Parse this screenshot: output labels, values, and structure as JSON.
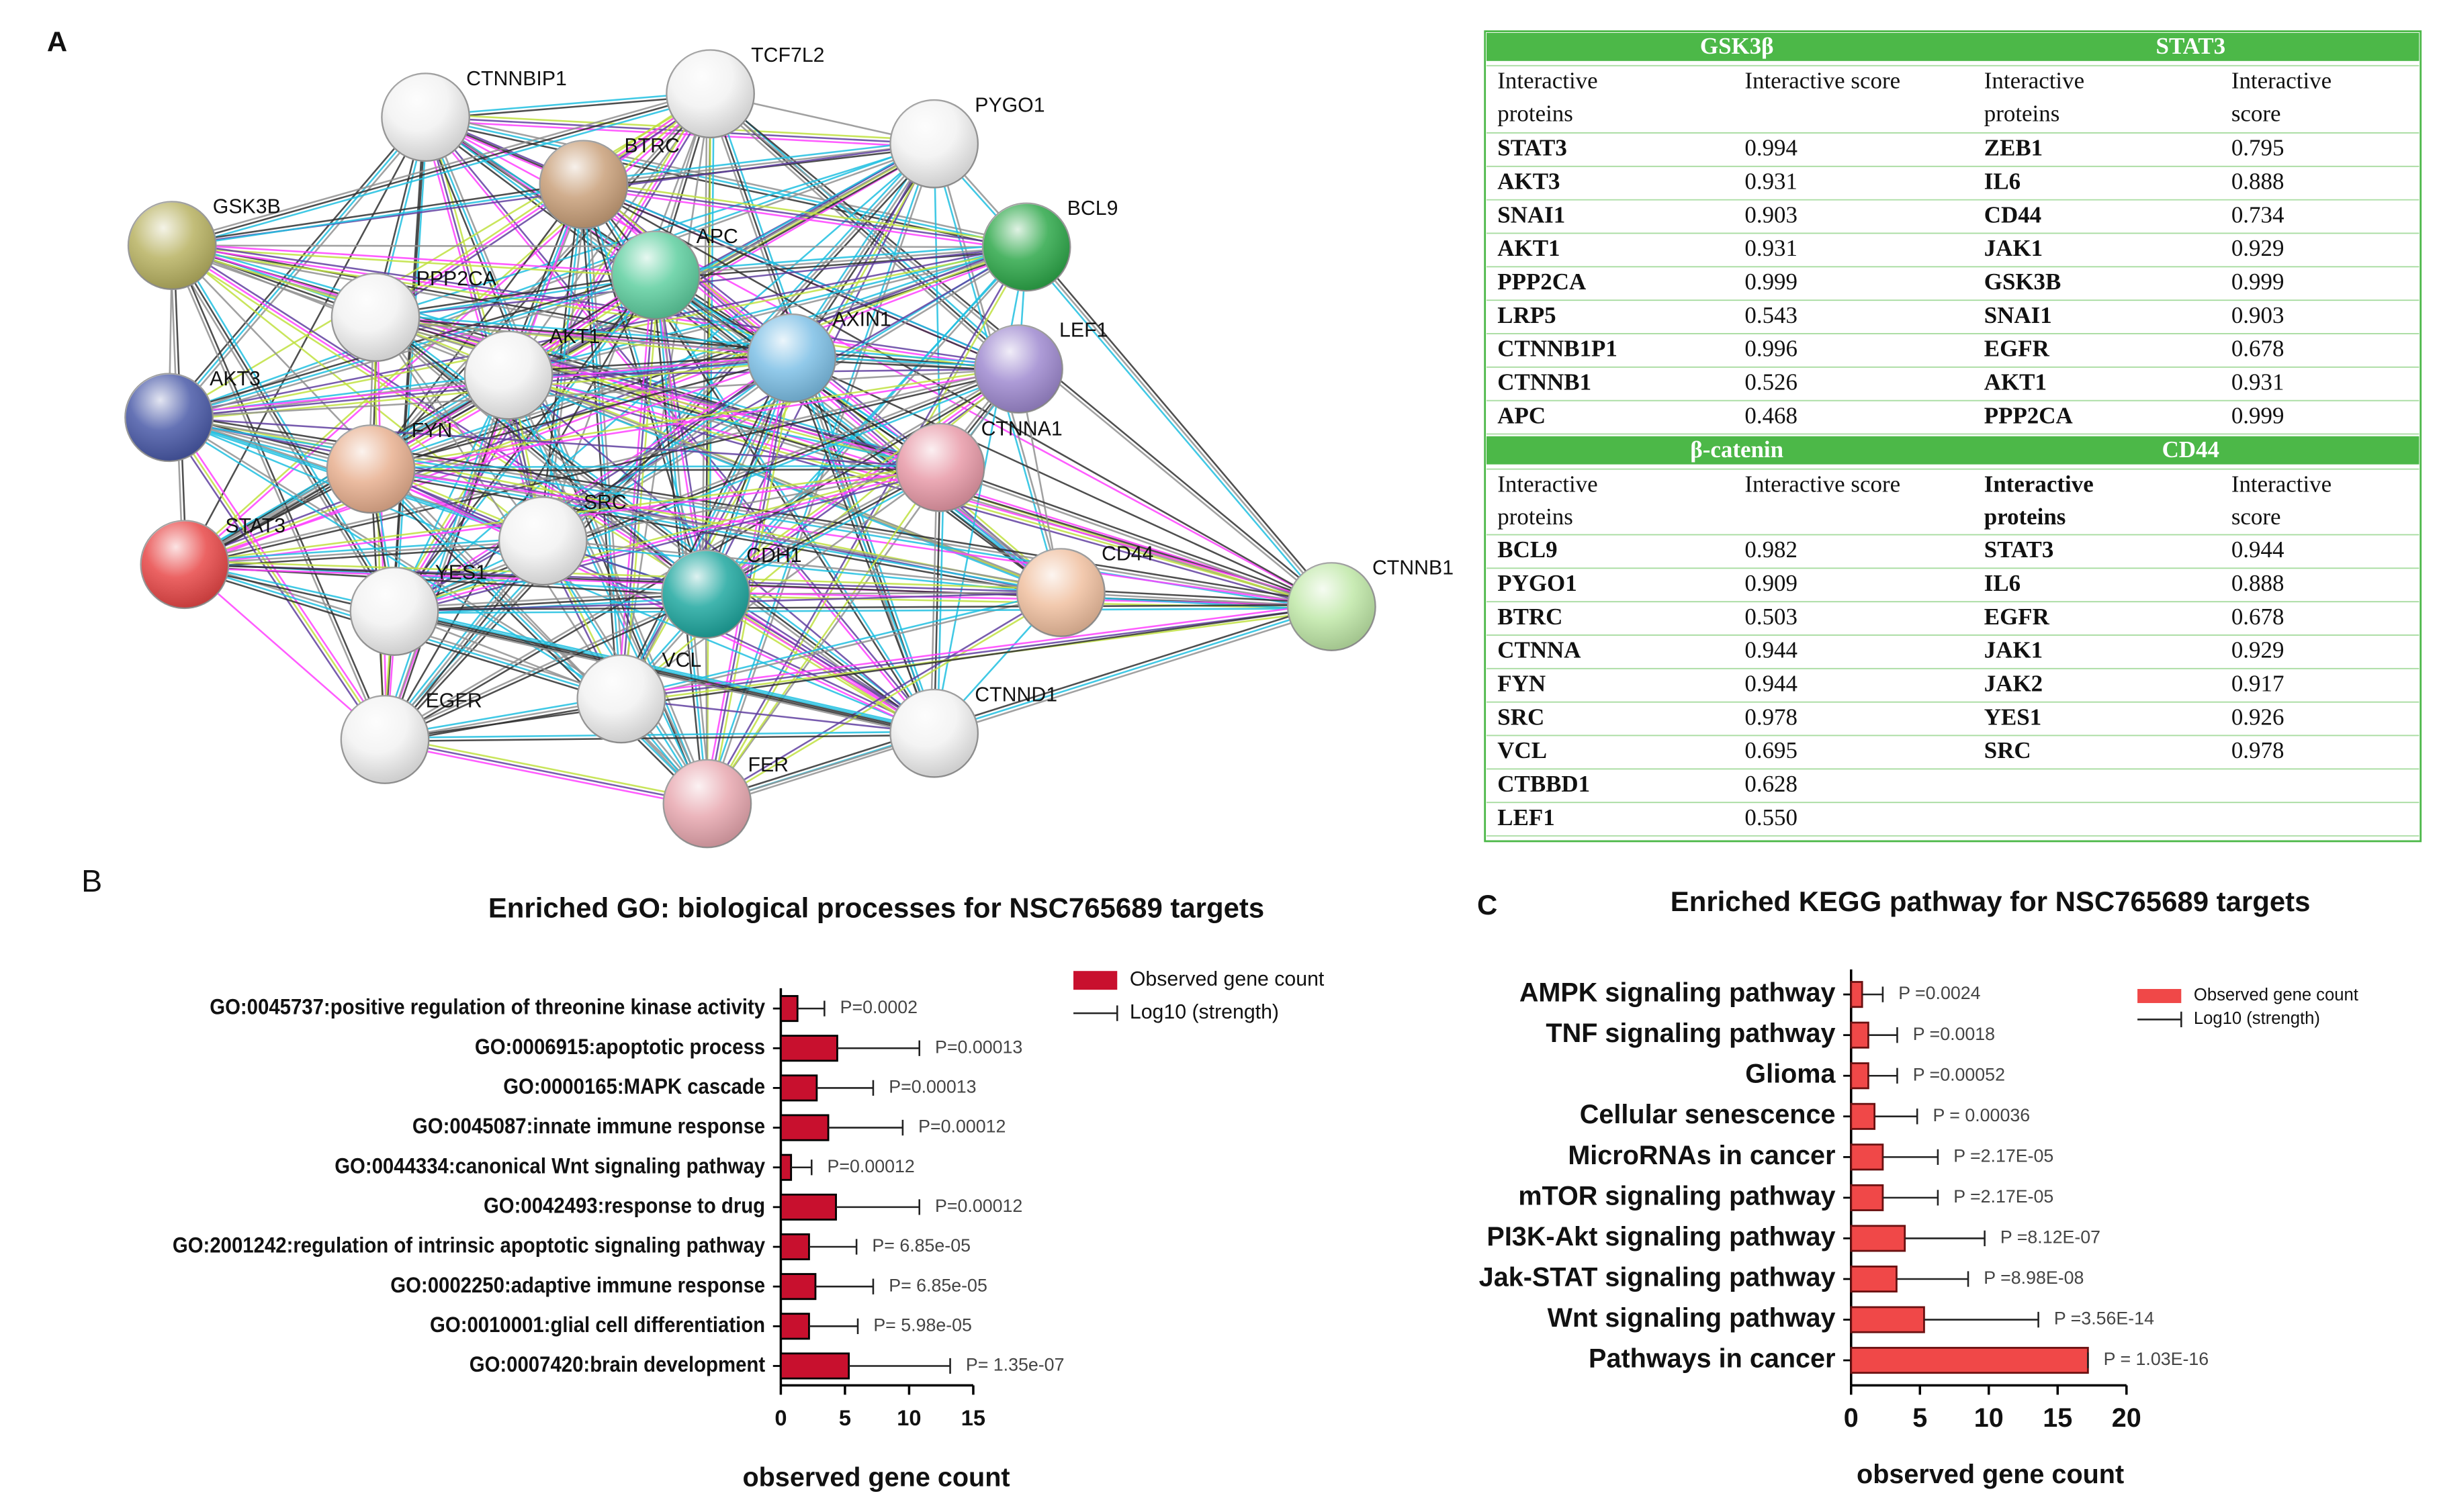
{
  "panel_a": {
    "label": "A",
    "network": {
      "nodes": [
        "CTNNBIP1",
        "TCF7L2",
        "PYGO1",
        "BTRC",
        "GSK3B",
        "BCL9",
        "APC",
        "PPP2CA",
        "AKT1",
        "AXIN1",
        "LEF1",
        "AKT3",
        "FYN",
        "CTNNA1",
        "SRC",
        "STAT3",
        "CDH1",
        "CD44",
        "CTNNB1",
        "YES1",
        "VCL",
        "EGFR",
        "CTNND1",
        "FER"
      ]
    },
    "table": {
      "sections": [
        {
          "left": {
            "title": "GSK3β",
            "header": [
              "Interactive proteins",
              "Interactive score"
            ],
            "rows": [
              [
                "STAT3",
                "0.994"
              ],
              [
                "AKT3",
                "0.931"
              ],
              [
                "SNAI1",
                "0.903"
              ],
              [
                "AKT1",
                "0.931"
              ],
              [
                "PPP2CA",
                "0.999"
              ],
              [
                "LRP5",
                "0.543"
              ],
              [
                "CTNNB1P1",
                "0.996"
              ],
              [
                "CTNNB1",
                "0.526"
              ],
              [
                "APC",
                "0.468"
              ]
            ]
          },
          "right": {
            "title": "STAT3",
            "header": [
              "Interactive proteins",
              "Interactive score"
            ],
            "rows": [
              [
                "ZEB1",
                "0.795"
              ],
              [
                "IL6",
                "0.888"
              ],
              [
                "CD44",
                "0.734"
              ],
              [
                "JAK1",
                "0.929"
              ],
              [
                "GSK3B",
                "0.999"
              ],
              [
                "SNAI1",
                "0.903"
              ],
              [
                "EGFR",
                "0.678"
              ],
              [
                "AKT1",
                "0.931"
              ],
              [
                "PPP2CA",
                "0.999"
              ]
            ]
          }
        },
        {
          "left": {
            "title": "β-catenin",
            "header": [
              "Interactive proteins",
              "Interactive score"
            ],
            "rows": [
              [
                "BCL9",
                "0.982"
              ],
              [
                "PYGO1",
                "0.909"
              ],
              [
                "BTRC",
                "0.503"
              ],
              [
                "CTNNA",
                "0.944"
              ],
              [
                "FYN",
                "0.944"
              ],
              [
                "SRC",
                "0.978"
              ],
              [
                "VCL",
                "0.695"
              ],
              [
                "CTBBD1",
                "0.628"
              ],
              [
                "LEF1",
                "0.550"
              ]
            ]
          },
          "right": {
            "title": "CD44",
            "header": [
              "Interactive proteins",
              "Interactive score"
            ],
            "rows": [
              [
                "STAT3",
                "0.944"
              ],
              [
                "IL6",
                "0.888"
              ],
              [
                "EGFR",
                "0.678"
              ],
              [
                "JAK1",
                "0.929"
              ],
              [
                "JAK2",
                "0.917"
              ],
              [
                "YES1",
                "0.926"
              ],
              [
                "SRC",
                "0.978"
              ]
            ]
          }
        }
      ]
    }
  },
  "chart_data": [
    {
      "type": "bar",
      "panel_label": "B",
      "title": "Enriched GO: biological processes for NSC765689 targets",
      "xlabel": "observed gene count",
      "categories": [
        "GO:0045737:positive regulation of threonine kinase activity",
        "GO:0006915:apoptotic process",
        "GO:0000165:MAPK cascade",
        "GO:0045087:innate immune response",
        "GO:0044334:canonical Wnt signaling pathway",
        "GO:0042493:response to drug",
        "GO:2001242:regulation of intrinsic apoptotic signaling pathway",
        "GO:0002250:adaptive immune response",
        "GO:0010001:glial cell differentiation",
        "GO:0007420:brain development"
      ],
      "series": [
        {
          "name": "Observed gene count",
          "color": "#c8102e",
          "values": [
            1.3,
            4.4,
            2.8,
            3.7,
            0.8,
            4.3,
            2.2,
            2.7,
            2.2,
            5.3
          ],
          "errors": [
            2.1,
            6.4,
            4.4,
            5.8,
            1.6,
            6.5,
            3.7,
            4.5,
            3.8,
            7.9
          ]
        }
      ],
      "error_name": "Log10 (strength)",
      "p_labels": [
        "P=0.0002",
        "P=0.00013",
        "P=0.00013",
        "P=0.00012",
        "P=0.00012",
        "P=0.00012",
        "P= 6.85e-05",
        "P= 6.85e-05",
        "P= 5.98e-05",
        "P= 1.35e-07"
      ],
      "xlim": [
        0,
        15
      ],
      "xticks": [
        0,
        5,
        10,
        15
      ]
    },
    {
      "type": "bar",
      "panel_label": "C",
      "title": "Enriched KEGG pathway for NSC765689 targets",
      "xlabel": "observed gene count",
      "categories": [
        "AMPK signaling pathway",
        "TNF signaling pathway",
        "Glioma",
        "Cellular senescence",
        "MicroRNAs in cancer",
        "mTOR signaling pathway",
        "PI3K-Akt signaling pathway",
        "Jak-STAT signaling pathway",
        "Wnt signaling pathway",
        "Pathways in cancer"
      ],
      "series": [
        {
          "name": "Observed gene count",
          "color": "#f04848",
          "values": [
            0.8,
            1.25,
            1.25,
            1.7,
            2.3,
            2.3,
            3.9,
            3.3,
            5.3,
            17.2
          ],
          "errors": [
            1.5,
            2.1,
            2.1,
            3.1,
            4,
            4,
            5.8,
            5.2,
            8.3,
            0
          ]
        }
      ],
      "error_name": "Log10 (strength)",
      "p_labels": [
        "P =0.0024",
        "P =0.0018",
        "P =0.00052",
        "P = 0.00036",
        "P =2.17E-05",
        "P =2.17E-05",
        "P =8.12E-07",
        "P =8.98E-08",
        "P =3.56E-14",
        "P = 1.03E-16"
      ],
      "xlim": [
        0,
        20
      ],
      "xticks": [
        0,
        5,
        10,
        15,
        20
      ]
    }
  ]
}
